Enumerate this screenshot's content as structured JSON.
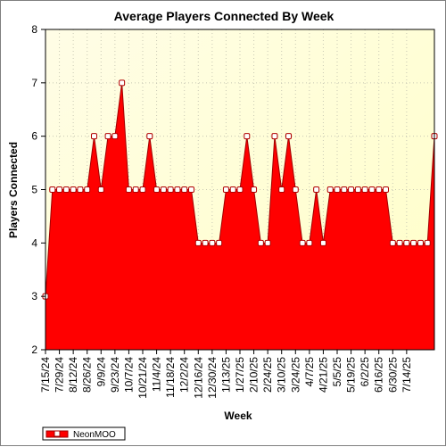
{
  "chart_data": {
    "type": "area",
    "title": "Average Players Connected By Week",
    "xlabel": "Week",
    "ylabel": "Players Connected",
    "ylim": [
      2,
      8
    ],
    "yticks": [
      2,
      3,
      4,
      5,
      6,
      7,
      8
    ],
    "grid": true,
    "legend_position": "bottom-left",
    "x_tick_labels": [
      "7/15/24",
      "7/29/24",
      "8/12/24",
      "8/26/24",
      "9/9/24",
      "9/23/24",
      "10/7/24",
      "10/21/24",
      "11/4/24",
      "11/18/24",
      "12/2/24",
      "12/16/24",
      "12/30/24",
      "1/13/25",
      "1/27/25",
      "2/10/25",
      "2/24/25",
      "3/10/25",
      "3/24/25",
      "4/7/25",
      "4/21/25",
      "5/5/25",
      "5/19/25",
      "6/2/25",
      "6/16/25",
      "6/30/25",
      "7/14/25"
    ],
    "series": [
      {
        "name": "NeonMOO",
        "color": "#ff0000",
        "values": [
          3,
          5,
          5,
          5,
          5,
          5,
          5,
          6,
          5,
          6,
          6,
          7,
          5,
          5,
          5,
          6,
          5,
          5,
          5,
          5,
          5,
          5,
          4,
          4,
          4,
          4,
          5,
          5,
          5,
          6,
          5,
          4,
          4,
          6,
          5,
          6,
          5,
          4,
          4,
          5,
          4,
          5,
          5,
          5,
          5,
          5,
          5,
          5,
          5,
          5,
          4,
          4,
          4,
          4,
          4,
          4,
          6
        ]
      }
    ]
  }
}
